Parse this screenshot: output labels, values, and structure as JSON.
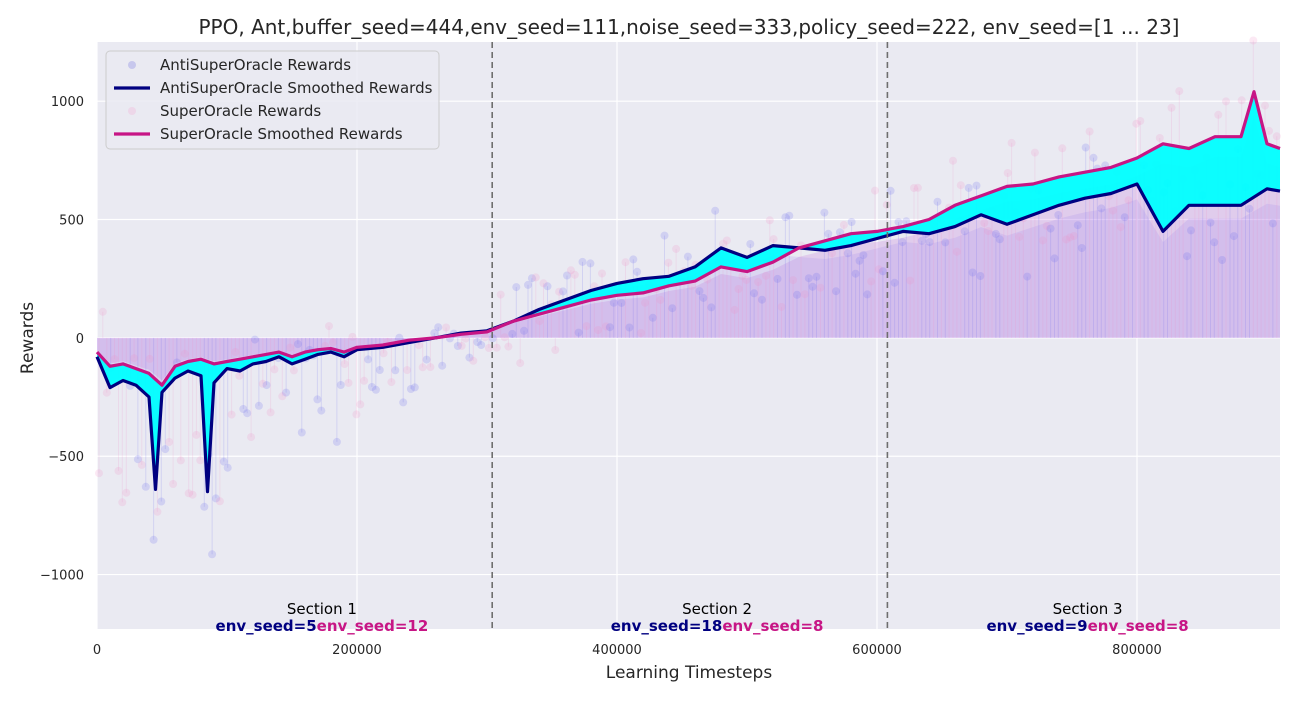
{
  "chart_data": {
    "type": "line",
    "title": "PPO, Ant,buffer_seed=444,env_seed=111,noise_seed=333,policy_seed=222, env_seed=[1 ... 23]",
    "xlabel": "Learning Timesteps",
    "ylabel": "Rewards",
    "xlim": [
      0,
      910000
    ],
    "ylim": [
      -1230,
      1250
    ],
    "x_ticks": [
      0,
      200000,
      400000,
      600000,
      800000
    ],
    "x_tick_labels": [
      "0",
      "200000",
      "400000",
      "600000",
      "800000"
    ],
    "y_ticks": [
      -1000,
      -500,
      0,
      500,
      1000
    ],
    "y_tick_labels": [
      "−1000",
      "−500",
      "0",
      "500",
      "1000"
    ],
    "grid": true,
    "legend_position": "top-left",
    "legend": [
      {
        "label": "AntiSuperOracle Rewards",
        "style": "faint-marker",
        "color": "#0000cd"
      },
      {
        "label": "AntiSuperOracle Smoothed Rewards",
        "style": "line",
        "color": "#000080"
      },
      {
        "label": "SuperOracle Rewards",
        "style": "faint-marker",
        "color": "#ff69b4"
      },
      {
        "label": "SuperOracle Smoothed Rewards",
        "style": "line",
        "color": "#c71585"
      }
    ],
    "section_boundaries": [
      304000,
      608000
    ],
    "sections": [
      {
        "name": "Section 1",
        "x_center": 173000,
        "anti_label": "env_seed=5",
        "super_label": "env_seed=12"
      },
      {
        "name": "Section 2",
        "x_center": 477000,
        "anti_label": "env_seed=18",
        "super_label": "env_seed=8"
      },
      {
        "name": "Section 3",
        "x_center": 762000,
        "anti_label": "env_seed=9",
        "super_label": "env_seed=8"
      }
    ],
    "series": [
      {
        "name": "AntiSuperOracle Smoothed Rewards",
        "color": "#000080",
        "x": [
          0,
          10000,
          20000,
          30000,
          40000,
          45000,
          50000,
          60000,
          70000,
          80000,
          85000,
          90000,
          100000,
          110000,
          120000,
          130000,
          140000,
          150000,
          160000,
          170000,
          180000,
          190000,
          200000,
          220000,
          240000,
          260000,
          280000,
          300000,
          320000,
          340000,
          360000,
          380000,
          400000,
          420000,
          440000,
          460000,
          480000,
          500000,
          520000,
          540000,
          560000,
          580000,
          600000,
          620000,
          640000,
          660000,
          680000,
          700000,
          720000,
          740000,
          760000,
          780000,
          800000,
          820000,
          840000,
          860000,
          880000,
          900000,
          910000
        ],
        "y": [
          -80,
          -210,
          -180,
          -200,
          -250,
          -640,
          -230,
          -170,
          -140,
          -160,
          -650,
          -190,
          -130,
          -140,
          -110,
          -100,
          -80,
          -110,
          -90,
          -70,
          -60,
          -80,
          -50,
          -40,
          -20,
          0,
          20,
          30,
          70,
          120,
          160,
          200,
          230,
          250,
          260,
          300,
          380,
          340,
          390,
          380,
          370,
          390,
          420,
          450,
          440,
          470,
          520,
          480,
          520,
          560,
          590,
          610,
          650,
          450,
          560,
          560,
          560,
          630,
          620
        ]
      },
      {
        "name": "SuperOracle Smoothed Rewards",
        "color": "#c71585",
        "x": [
          0,
          10000,
          20000,
          30000,
          40000,
          50000,
          60000,
          70000,
          80000,
          90000,
          100000,
          110000,
          120000,
          130000,
          140000,
          150000,
          160000,
          170000,
          180000,
          190000,
          200000,
          220000,
          240000,
          260000,
          280000,
          300000,
          320000,
          340000,
          360000,
          380000,
          400000,
          420000,
          440000,
          460000,
          480000,
          500000,
          520000,
          540000,
          560000,
          580000,
          600000,
          620000,
          640000,
          660000,
          680000,
          700000,
          720000,
          740000,
          760000,
          780000,
          800000,
          820000,
          840000,
          860000,
          880000,
          890000,
          900000,
          910000
        ],
        "y": [
          -60,
          -120,
          -110,
          -130,
          -150,
          -200,
          -120,
          -100,
          -90,
          -110,
          -100,
          -90,
          -80,
          -70,
          -60,
          -80,
          -60,
          -50,
          -45,
          -60,
          -40,
          -30,
          -10,
          0,
          15,
          25,
          70,
          100,
          130,
          160,
          180,
          190,
          220,
          240,
          300,
          280,
          320,
          380,
          410,
          440,
          450,
          470,
          500,
          560,
          600,
          640,
          650,
          680,
          700,
          720,
          760,
          820,
          800,
          850,
          850,
          1040,
          820,
          800
        ]
      }
    ]
  }
}
